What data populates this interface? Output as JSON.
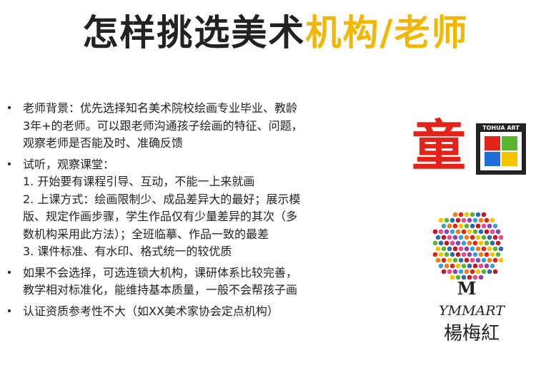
{
  "title": {
    "part1": "怎样挑选美术",
    "accent": "机构/老师"
  },
  "bullets": [
    {
      "lines": [
        "老师背景：优先选择知名美术院校绘画专业毕业、教龄",
        "3年+的老师。可以跟老师沟通孩子绘画的特征、问题，",
        "观察老师是否能及时、准确反馈"
      ]
    },
    {
      "lines": [
        "试听，观察课堂：",
        "1. 开始要有课程引导、互动，不能一上来就画",
        "2. 上课方式：绘画限制少、成品差异大的最好；展示模",
        "版、规定作画步骤，学生作品仅有少量差异的其次（多",
        "数机构采用此方法）；全班临摹、作品一致的最差",
        "3. 课件标准、有水印、格式统一的较优质"
      ]
    },
    {
      "lines": [
        "如果不会选择，可选连锁大机构，课研体系比较完善，",
        "教学相对标准化，能维持基本质量，一般不会帮孩子画"
      ]
    },
    {
      "lines": [
        "认证资质参考性不大（如XX美术家协会定点机构）"
      ]
    }
  ],
  "logos": {
    "tongqu": {
      "char": "童",
      "badge": "TOHUA ART"
    },
    "ymmart": {
      "monogram": "M",
      "wordmark": "YMMART",
      "chinese": "楊梅紅"
    }
  },
  "colors": {
    "accent": "#f2b705",
    "red": "#e2231a",
    "green": "#5cb531",
    "blue": "#1e6fd9",
    "yellow": "#f5c400"
  }
}
